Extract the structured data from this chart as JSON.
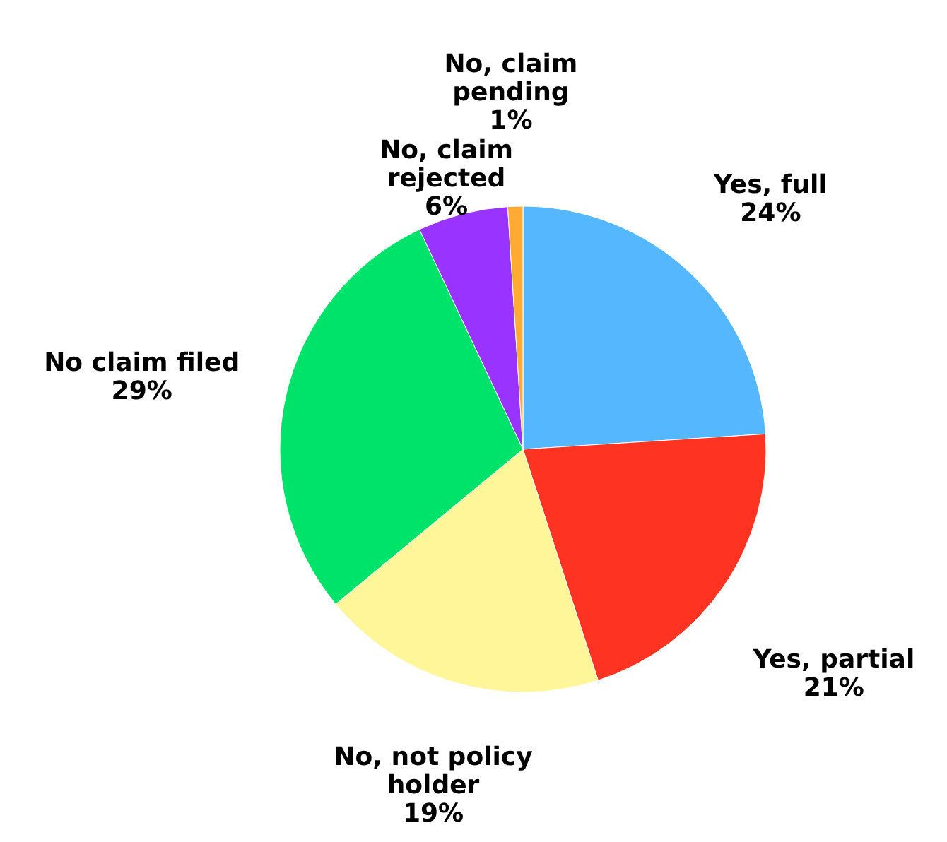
{
  "chart_data": {
    "type": "pie",
    "categories": [
      "Yes, full",
      "Yes, partial",
      "No, not policy holder",
      "No claim filed",
      "No, claim rejected",
      "No, claim pending"
    ],
    "values": [
      24,
      21,
      19,
      29,
      6,
      1
    ],
    "value_labels": [
      "24%",
      "21%",
      "19%",
      "29%",
      "6%",
      "1%"
    ],
    "colors": [
      "#55b8ff",
      "#ff3322",
      "#fff599",
      "#00e36a",
      "#9933ff",
      "#ffaa33"
    ]
  }
}
